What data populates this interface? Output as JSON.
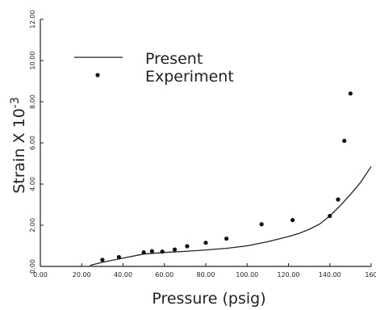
{
  "chart_data": {
    "type": "line",
    "title": "",
    "xlabel": "Pressure   (psig)",
    "ylabel": "Strain  X  10",
    "ylabel_exponent": "-3",
    "xlim": [
      0,
      160
    ],
    "ylim": [
      0,
      12
    ],
    "x_ticks": [
      0,
      20,
      40,
      60,
      80,
      100,
      120,
      140,
      160
    ],
    "x_tick_labels": [
      "0.00",
      "20.00",
      "40.00",
      "60.00",
      "80.00",
      "100.00",
      "120.00",
      "140.00",
      "160"
    ],
    "y_ticks": [
      0,
      2,
      4,
      6,
      8,
      10,
      12
    ],
    "y_tick_labels": [
      "0.00",
      "2.00",
      "4.00",
      "6.00",
      "8.00",
      "10.00",
      "12.00"
    ],
    "grid": false,
    "legend": "top-left",
    "series": [
      {
        "name": "Present",
        "kind": "line",
        "color": "#222222",
        "x": [
          24,
          30,
          40,
          50,
          60,
          70,
          80,
          90,
          100,
          110,
          120,
          125,
          130,
          135,
          140,
          145,
          150,
          155,
          160
        ],
        "y": [
          0.05,
          0.2,
          0.4,
          0.6,
          0.68,
          0.73,
          0.8,
          0.88,
          1.0,
          1.2,
          1.45,
          1.6,
          1.8,
          2.05,
          2.45,
          2.95,
          3.5,
          4.1,
          4.85
        ]
      },
      {
        "name": "Experiment",
        "kind": "scatter",
        "color": "#111111",
        "x": [
          30,
          38,
          50,
          54,
          59,
          65,
          71,
          80,
          90,
          107,
          122,
          140,
          144,
          147,
          150
        ],
        "y": [
          0.32,
          0.45,
          0.68,
          0.74,
          0.72,
          0.82,
          0.98,
          1.15,
          1.35,
          2.05,
          2.25,
          2.45,
          3.25,
          6.1,
          8.4
        ]
      }
    ]
  }
}
